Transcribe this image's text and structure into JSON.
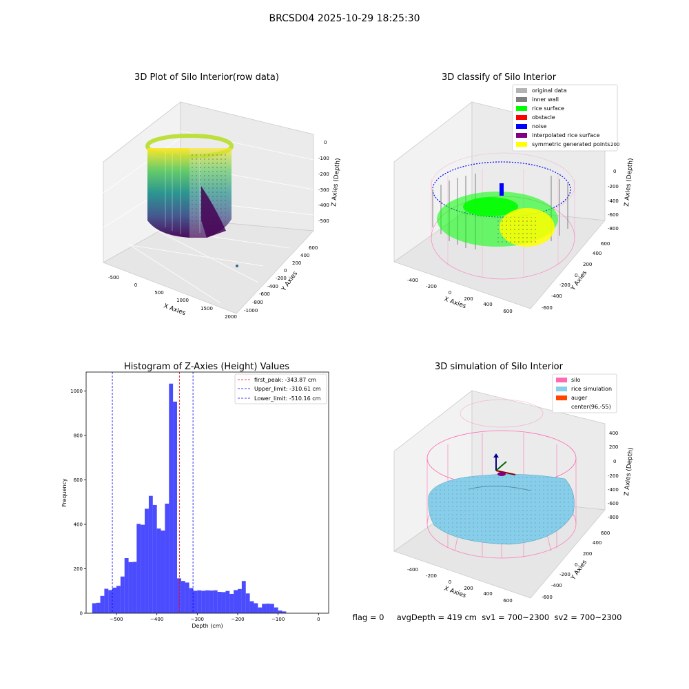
{
  "figure_title": "BRCSD04 2025-10-29 18:25:30",
  "status_line": "flag = 0     avgDepth = 419 cm  sv1 = 700~2300  sv2 = 700~2300",
  "panels": {
    "raw": {
      "title": "3D Plot of Silo Interior(row data)",
      "xlabel": "X Axies",
      "ylabel": "Y Axies",
      "zlabel": "Z Axies (Depth)",
      "xticks": [
        "-500",
        "0",
        "500",
        "1000",
        "1500",
        "2000"
      ],
      "yticks": [
        "600",
        "400",
        "200",
        "0",
        "-200",
        "-400",
        "-600",
        "-800",
        "-1000"
      ],
      "zticks": [
        "0",
        "-100",
        "-200",
        "-300",
        "-400",
        "-500"
      ],
      "colormap": "viridis"
    },
    "classify": {
      "title": "3D classify of Silo Interior",
      "xlabel": "X Axies",
      "ylabel": "Y Axies",
      "zlabel": "Z Axies (Depth)",
      "xticks": [
        "-400",
        "-200",
        "0",
        "200",
        "400",
        "600"
      ],
      "yticks": [
        "600",
        "400",
        "200",
        "0",
        "-200",
        "-400",
        "-600"
      ],
      "zticks": [
        "200",
        "0",
        "-200",
        "-400",
        "-600",
        "-800"
      ],
      "legend": [
        {
          "label": "original data",
          "color": "#b3b3b3"
        },
        {
          "label": "inner wall",
          "color": "#808080"
        },
        {
          "label": "rice surface",
          "color": "#00ff00"
        },
        {
          "label": "obstacle",
          "color": "#ff0000"
        },
        {
          "label": "noise",
          "color": "#0000ff"
        },
        {
          "label": "interpolated rice surface",
          "color": "#800080"
        },
        {
          "label": "symmetric generated points",
          "color": "#ffff00"
        }
      ]
    },
    "simulation": {
      "title": "3D simulation of Silo Interior",
      "xlabel": "X Axies",
      "ylabel": "Y Axies",
      "zlabel": "Z Axies (Depth)",
      "xticks": [
        "-400",
        "-200",
        "0",
        "200",
        "400",
        "600"
      ],
      "yticks": [
        "600",
        "400",
        "200",
        "0",
        "-200",
        "-400",
        "-600"
      ],
      "zticks": [
        "400",
        "200",
        "0",
        "-200",
        "-400",
        "-600",
        "-800"
      ],
      "legend": [
        {
          "label": "silo",
          "color": "#ff69b4"
        },
        {
          "label": "rice simulation",
          "color": "#87ceeb"
        },
        {
          "label": "auger",
          "color": "#ff4500"
        },
        {
          "label": "center(96,-55)",
          "color": ""
        }
      ]
    }
  },
  "chart_data": [
    {
      "type": "bar",
      "title": "Histogram of Z-Axies (Height) Values",
      "xlabel": "Depth (cm)",
      "ylabel": "Frequency",
      "xlim": [
        -575,
        25
      ],
      "ylim": [
        0,
        1085
      ],
      "bin_width": 10,
      "bin_starts": [
        -560,
        -550,
        -540,
        -530,
        -520,
        -510,
        -500,
        -490,
        -480,
        -470,
        -460,
        -450,
        -440,
        -430,
        -420,
        -410,
        -400,
        -390,
        -380,
        -370,
        -360,
        -350,
        -340,
        -330,
        -320,
        -310,
        -300,
        -290,
        -280,
        -270,
        -260,
        -250,
        -240,
        -230,
        -220,
        -210,
        -200,
        -190,
        -180,
        -170,
        -160,
        -150,
        -140,
        -130,
        -120,
        -110,
        -100,
        -90,
        -80,
        -70,
        -60,
        -50,
        -40,
        -30,
        -20,
        -10
      ],
      "values": [
        45,
        47,
        78,
        110,
        104,
        115,
        123,
        165,
        248,
        230,
        231,
        402,
        398,
        470,
        528,
        487,
        381,
        372,
        493,
        1033,
        952,
        157,
        145,
        138,
        113,
        101,
        103,
        101,
        103,
        102,
        103,
        96,
        95,
        100,
        87,
        104,
        109,
        145,
        89,
        54,
        45,
        26,
        42,
        43,
        42,
        26,
        12,
        8,
        0,
        0,
        0,
        0,
        0,
        0,
        0,
        0
      ],
      "xticks": [
        -500,
        -400,
        -300,
        -200,
        -100,
        0
      ],
      "yticks": [
        0,
        200,
        400,
        600,
        800,
        1000
      ],
      "bar_color": "#0000ff",
      "vlines": [
        {
          "label": "first_peak: -343.87 cm",
          "x": -343.87,
          "color": "#ff0000"
        },
        {
          "label": "Upper_limit: -310.61 cm",
          "x": -310.61,
          "color": "#0000ff"
        },
        {
          "label": "Lower_limit: -510.16 cm",
          "x": -510.16,
          "color": "#0000ff"
        }
      ],
      "legend_position": "top-right"
    }
  ]
}
